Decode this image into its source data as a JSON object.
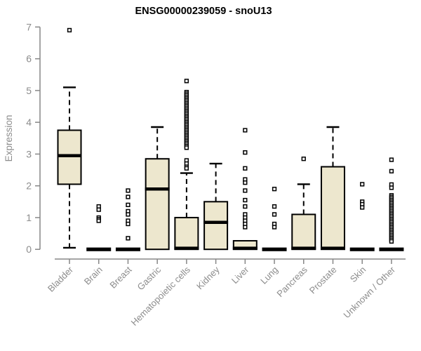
{
  "chart_data": {
    "type": "boxplot",
    "title": "ENSG00000239059 - snoU13",
    "ylabel": "Expression",
    "xlabel": "",
    "ylim": [
      0,
      7
    ],
    "yticks": [
      0,
      1,
      2,
      3,
      4,
      5,
      6,
      7
    ],
    "grid": false,
    "legend": "none",
    "categories": [
      "Bladder",
      "Brain",
      "Breast",
      "Gastric",
      "Hematopoietic cells",
      "Kidney",
      "Liver",
      "Lung",
      "Pancreas",
      "Prostate",
      "Skin",
      "Unknown / Other"
    ],
    "series": [
      {
        "name": "Bladder",
        "low": 0.05,
        "q1": 2.05,
        "median": 2.95,
        "q3": 3.75,
        "high": 5.1,
        "outliers": [
          6.9
        ]
      },
      {
        "name": "Brain",
        "low": 0,
        "q1": 0,
        "median": 0,
        "q3": 0,
        "high": 0,
        "outliers": [
          1.35,
          1.25,
          1.0,
          0.95,
          0.9
        ]
      },
      {
        "name": "Breast",
        "low": 0,
        "q1": 0,
        "median": 0,
        "q3": 0,
        "high": 0,
        "outliers": [
          1.85,
          1.65,
          1.4,
          1.2,
          1.1,
          0.9,
          0.8,
          0.35
        ]
      },
      {
        "name": "Gastric",
        "low": 0,
        "q1": 0,
        "median": 1.9,
        "q3": 2.85,
        "high": 3.85,
        "outliers": []
      },
      {
        "name": "Hematopoietic cells",
        "low": 0,
        "q1": 0,
        "median": 0,
        "q3": 1.0,
        "high": 2.4,
        "outliers": [
          5.3,
          4.95,
          4.9,
          4.85,
          4.8,
          4.75,
          4.7,
          4.65,
          4.6,
          4.55,
          4.5,
          4.45,
          4.4,
          4.35,
          4.3,
          4.25,
          4.2,
          4.15,
          4.1,
          4.05,
          4.0,
          3.95,
          3.9,
          3.85,
          3.8,
          3.75,
          3.7,
          3.65,
          3.6,
          3.55,
          3.5,
          3.45,
          3.4,
          3.35,
          3.3,
          3.25,
          3.2,
          2.8,
          2.7,
          2.6,
          2.55
        ]
      },
      {
        "name": "Kidney",
        "low": 0,
        "q1": 0,
        "median": 0.85,
        "q3": 1.5,
        "high": 2.7,
        "outliers": []
      },
      {
        "name": "Liver",
        "low": 0,
        "q1": 0,
        "median": 0,
        "q3": 0.27,
        "high": 0.27,
        "outliers": [
          3.75,
          3.05,
          2.55,
          2.2,
          2.1,
          1.85,
          1.55,
          1.35,
          1.1,
          1.0,
          0.9,
          0.8,
          0.7
        ]
      },
      {
        "name": "Lung",
        "low": 0,
        "q1": 0,
        "median": 0,
        "q3": 0,
        "high": 0,
        "outliers": [
          1.9,
          1.35,
          1.1,
          0.8,
          0.7
        ]
      },
      {
        "name": "Pancreas",
        "low": 0,
        "q1": 0,
        "median": 0,
        "q3": 1.1,
        "high": 2.05,
        "outliers": [
          2.85
        ]
      },
      {
        "name": "Prostate",
        "low": 0,
        "q1": 0,
        "median": 0,
        "q3": 2.6,
        "high": 3.85,
        "outliers": []
      },
      {
        "name": "Skin",
        "low": 0,
        "q1": 0,
        "median": 0,
        "q3": 0,
        "high": 0,
        "outliers": [
          2.05,
          1.5,
          1.42,
          1.32
        ]
      },
      {
        "name": "Unknown / Other",
        "low": 0,
        "q1": 0,
        "median": 0,
        "q3": 0,
        "high": 0,
        "outliers": [
          2.82,
          2.46,
          2.04,
          1.94,
          1.7,
          1.65,
          1.6,
          1.55,
          1.5,
          1.45,
          1.4,
          1.35,
          1.3,
          1.25,
          1.2,
          1.15,
          1.1,
          1.05,
          1.0,
          0.95,
          0.9,
          0.85,
          0.8,
          0.75,
          0.7,
          0.65,
          0.6,
          0.55,
          0.5,
          0.45,
          0.4,
          0.35,
          0.3,
          0.25
        ]
      }
    ],
    "colors": {
      "box_fill": "#EDE7CE",
      "box_stroke": "#000000",
      "median": "#000000",
      "axis": "#878787",
      "tick_label": "#8c8c8c",
      "title": "#000000",
      "outlier_fill": "#ffffff",
      "background": "#ffffff"
    }
  }
}
